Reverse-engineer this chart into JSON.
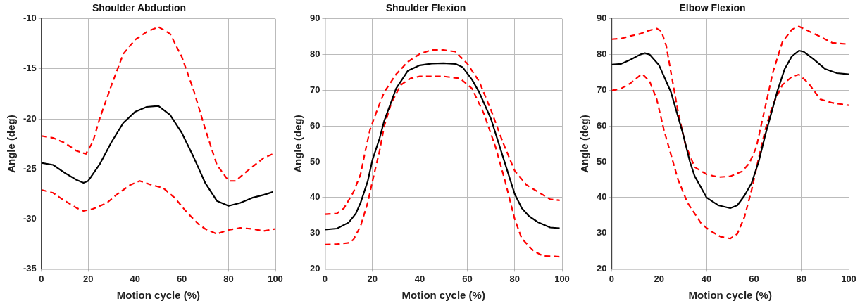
{
  "chart_data": [
    {
      "type": "line",
      "title": "Shoulder Abduction",
      "xlabel": "Motion cycle (%)",
      "ylabel": "Angle (deg)",
      "xlim": [
        0,
        100
      ],
      "xticks": [
        0,
        20,
        40,
        60,
        80,
        100
      ],
      "ylim": [
        -35,
        -10
      ],
      "yticks": [
        -35,
        -30,
        -25,
        -20,
        -15,
        -10
      ],
      "grid": true,
      "marker": "none",
      "series": [
        {
          "color": "#000000",
          "line_style": "solid",
          "x": [
            0,
            5,
            10,
            15,
            18,
            20,
            25,
            30,
            35,
            40,
            45,
            50,
            55,
            60,
            65,
            70,
            75,
            80,
            85,
            90,
            95,
            99
          ],
          "values": [
            -24.4,
            -24.6,
            -25.4,
            -26.1,
            -26.4,
            -26.2,
            -24.5,
            -22.3,
            -20.4,
            -19.3,
            -18.8,
            -18.7,
            -19.6,
            -21.4,
            -23.8,
            -26.4,
            -28.2,
            -28.7,
            -28.4,
            -27.9,
            -27.6,
            -27.3
          ]
        },
        {
          "color": "#ff0000",
          "line_style": "dashed",
          "x": [
            0,
            5,
            10,
            15,
            19,
            22,
            25,
            30,
            35,
            40,
            45,
            50,
            55,
            60,
            65,
            70,
            75,
            80,
            83,
            88,
            95,
            99
          ],
          "values": [
            -21.7,
            -21.9,
            -22.4,
            -23.2,
            -23.5,
            -22.3,
            -19.9,
            -16.6,
            -13.5,
            -12.1,
            -11.3,
            -10.8,
            -11.5,
            -13.8,
            -17.1,
            -21.0,
            -24.6,
            -26.2,
            -26.2,
            -25.2,
            -23.9,
            -23.5
          ]
        },
        {
          "color": "#ff0000",
          "line_style": "dashed",
          "x": [
            0,
            5,
            10,
            15,
            18,
            22,
            28,
            32,
            38,
            42,
            47,
            52,
            57,
            62,
            67,
            70,
            75,
            80,
            85,
            90,
            95,
            100
          ],
          "values": [
            -27.1,
            -27.4,
            -28.2,
            -28.9,
            -29.2,
            -29.0,
            -28.4,
            -27.6,
            -26.6,
            -26.2,
            -26.6,
            -26.9,
            -27.9,
            -29.3,
            -30.5,
            -31.0,
            -31.5,
            -31.1,
            -30.9,
            -31.0,
            -31.2,
            -31.0
          ]
        }
      ]
    },
    {
      "type": "line",
      "title": "Shoulder Flexion",
      "xlabel": "Motion cycle (%)",
      "ylabel": "Angle (deg)",
      "xlim": [
        0,
        100
      ],
      "xticks": [
        0,
        20,
        40,
        60,
        80,
        100
      ],
      "ylim": [
        20,
        90
      ],
      "yticks": [
        20,
        30,
        40,
        50,
        60,
        70,
        80,
        90
      ],
      "grid": true,
      "marker": "none",
      "series": [
        {
          "color": "#000000",
          "line_style": "solid",
          "x": [
            0,
            5,
            10,
            13,
            15,
            18,
            20,
            23,
            25,
            30,
            35,
            40,
            45,
            50,
            55,
            58,
            62,
            65,
            70,
            75,
            80,
            83,
            86,
            90,
            95,
            99
          ],
          "values": [
            31.0,
            31.3,
            33.0,
            35.5,
            38.5,
            44.5,
            50.5,
            56.5,
            61.5,
            70.5,
            75.5,
            77.0,
            77.5,
            77.6,
            77.4,
            76.5,
            73.0,
            69.5,
            62.0,
            51.5,
            41.0,
            37.0,
            34.8,
            33.0,
            31.6,
            31.4
          ]
        },
        {
          "color": "#ff0000",
          "line_style": "dashed",
          "x": [
            0,
            5,
            8,
            12,
            15,
            17,
            19,
            22,
            25,
            30,
            35,
            40,
            45,
            50,
            55,
            60,
            65,
            70,
            75,
            80,
            85,
            90,
            95,
            99
          ],
          "values": [
            35.3,
            35.5,
            37.0,
            41.5,
            46.5,
            53,
            59,
            64.5,
            69.5,
            74.5,
            78.0,
            80.2,
            81.3,
            81.3,
            80.8,
            77.5,
            72.5,
            64.5,
            55.5,
            47.5,
            43.5,
            41.5,
            39.5,
            39.2
          ]
        },
        {
          "color": "#ff0000",
          "line_style": "dashed",
          "x": [
            0,
            5,
            10,
            12,
            15,
            18,
            20,
            23,
            25,
            28,
            32,
            36,
            40,
            50,
            57,
            62,
            67,
            72,
            76,
            80,
            83,
            88,
            92,
            97,
            99
          ],
          "values": [
            26.8,
            26.9,
            27.3,
            28.2,
            32,
            38.5,
            44.5,
            53,
            60,
            66.5,
            71.5,
            73.3,
            73.9,
            73.9,
            73.3,
            70.5,
            63.5,
            54.0,
            44.5,
            34.0,
            28.5,
            25.0,
            23.6,
            23.5,
            23.4
          ]
        }
      ]
    },
    {
      "type": "line",
      "title": "Elbow Flexion",
      "xlabel": "Motion cycle (%)",
      "ylabel": "Angle (deg)",
      "xlim": [
        0,
        100
      ],
      "xticks": [
        0,
        20,
        40,
        60,
        80,
        100
      ],
      "ylim": [
        20,
        90
      ],
      "yticks": [
        20,
        30,
        40,
        50,
        60,
        70,
        80,
        90
      ],
      "grid": true,
      "marker": "none",
      "series": [
        {
          "color": "#000000",
          "line_style": "solid",
          "x": [
            0,
            4,
            8,
            12,
            14,
            16,
            20,
            25,
            30,
            33,
            35,
            40,
            45,
            50,
            53,
            56,
            59,
            62,
            65,
            70,
            73,
            76,
            79,
            81,
            85,
            90,
            95,
            100
          ],
          "values": [
            77.2,
            77.4,
            78.6,
            80.0,
            80.4,
            80.0,
            77.0,
            69.5,
            58,
            50,
            46,
            40.0,
            37.8,
            37.0,
            37.8,
            40.5,
            44,
            50,
            58,
            70,
            76,
            79.5,
            81.1,
            80.8,
            78.8,
            76.0,
            74.8,
            74.5
          ]
        },
        {
          "color": "#ff0000",
          "line_style": "dashed",
          "x": [
            0,
            4,
            8,
            12,
            15,
            19,
            21,
            23,
            25,
            28,
            31,
            35,
            40,
            45,
            50,
            55,
            58,
            61,
            64,
            68,
            72,
            76,
            79,
            83,
            88,
            93,
            100
          ],
          "values": [
            84.3,
            84.5,
            85.2,
            85.8,
            86.6,
            87.3,
            86.5,
            82.5,
            75,
            64,
            55,
            48.5,
            46.5,
            45.7,
            45.9,
            47.3,
            49.5,
            54,
            63,
            75,
            83.5,
            87,
            87.9,
            86.6,
            85.0,
            83.3,
            82.9
          ]
        },
        {
          "color": "#ff0000",
          "line_style": "dashed",
          "x": [
            0,
            4,
            8,
            12,
            13,
            16,
            19,
            22,
            25,
            28,
            32,
            38,
            42,
            46,
            50,
            53,
            56,
            59,
            62,
            65,
            68,
            72,
            76,
            79,
            83,
            88,
            93,
            100
          ],
          "values": [
            69.9,
            70.5,
            72.0,
            74.2,
            74.5,
            72.5,
            67.5,
            59,
            52,
            45,
            38.5,
            32.5,
            30.5,
            29.0,
            28.5,
            29.8,
            34.5,
            42,
            51,
            59.5,
            66,
            71.5,
            73.8,
            74.4,
            72.0,
            67.5,
            66.5,
            65.8
          ]
        }
      ]
    }
  ]
}
